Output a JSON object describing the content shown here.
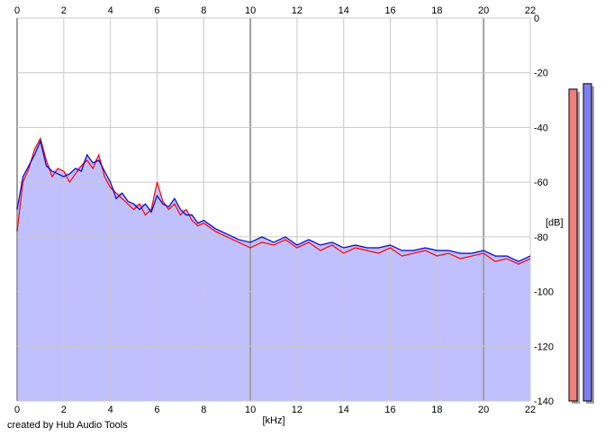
{
  "footer": "created by Hub Audio Tools",
  "colors": {
    "background": "#ffffff",
    "plot_fill": "#c0c0ff",
    "grid": "#c8c8c8",
    "grid_major": "#a0a0a0",
    "channel_left": "#ff0000",
    "channel_right": "#0000c8",
    "meter_left": "#f08080",
    "meter_right": "#8080f0"
  },
  "chart_data": {
    "type": "line",
    "xlabel": "[kHz]",
    "ylabel": "[dB]",
    "xlim": [
      0,
      22
    ],
    "ylim": [
      -140,
      0
    ],
    "x_ticks": [
      "0",
      "2",
      "4",
      "6",
      "8",
      "10",
      "12",
      "14",
      "16",
      "18",
      "20",
      "22"
    ],
    "y_ticks": [
      "0",
      "-20",
      "-40",
      "-60",
      "-80",
      "-100",
      "-120",
      "-140"
    ],
    "grid": true,
    "x": [
      0,
      0.25,
      0.5,
      0.75,
      1,
      1.25,
      1.5,
      1.75,
      2,
      2.25,
      2.5,
      2.75,
      3,
      3.25,
      3.5,
      3.75,
      4,
      4.25,
      4.5,
      4.75,
      5,
      5.25,
      5.5,
      5.75,
      6,
      6.25,
      6.5,
      6.75,
      7,
      7.25,
      7.5,
      7.75,
      8,
      8.5,
      9,
      9.5,
      10,
      10.5,
      11,
      11.5,
      12,
      12.5,
      13,
      13.5,
      14,
      14.5,
      15,
      15.5,
      16,
      16.5,
      17,
      17.5,
      18,
      18.5,
      19,
      19.5,
      20,
      20.5,
      21,
      21.5,
      22
    ],
    "series": [
      {
        "values": [
          -78,
          -60,
          -55,
          -48,
          -44,
          -52,
          -58,
          -55,
          -56,
          -60,
          -57,
          -54,
          -52,
          -55,
          -50,
          -58,
          -62,
          -64,
          -66,
          -68,
          -70,
          -68,
          -72,
          -70,
          -60,
          -67,
          -70,
          -68,
          -72,
          -70,
          -74,
          -76,
          -75,
          -78,
          -80,
          -82,
          -84,
          -82,
          -83,
          -81,
          -84,
          -82,
          -85,
          -83,
          -86,
          -84,
          -85,
          -86,
          -84,
          -87,
          -86,
          -85,
          -87,
          -86,
          -88,
          -87,
          -86,
          -89,
          -88,
          -90,
          -88
        ]
      },
      {
        "values": [
          -70,
          -58,
          -54,
          -50,
          -45,
          -54,
          -56,
          -57,
          -58,
          -57,
          -55,
          -56,
          -50,
          -53,
          -52,
          -56,
          -60,
          -66,
          -64,
          -67,
          -68,
          -70,
          -68,
          -71,
          -65,
          -68,
          -69,
          -66,
          -70,
          -72,
          -72,
          -75,
          -74,
          -77,
          -79,
          -81,
          -82,
          -80,
          -82,
          -80,
          -83,
          -81,
          -83,
          -82,
          -84,
          -83,
          -84,
          -84,
          -83,
          -85,
          -85,
          -84,
          -85,
          -85,
          -86,
          -86,
          -85,
          -87,
          -87,
          -89,
          -87
        ]
      }
    ],
    "level_meters": [
      {
        "channel": "left",
        "value_db": -26
      },
      {
        "channel": "right",
        "value_db": -24
      }
    ]
  }
}
